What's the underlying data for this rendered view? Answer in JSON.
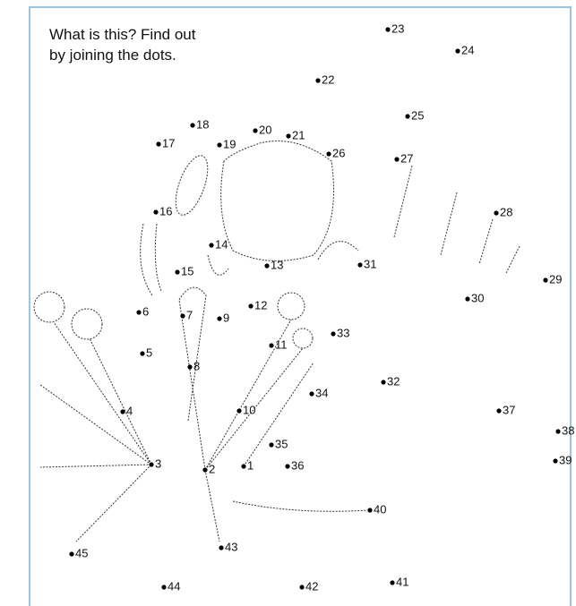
{
  "instructions": [
    "What is this? Find out",
    "by joining the dots."
  ],
  "dots": [
    "1",
    "2",
    "3",
    "4",
    "5",
    "6",
    "7",
    "8",
    "9",
    "10",
    "11",
    "12",
    "13",
    "14",
    "15",
    "16",
    "17",
    "18",
    "19",
    "20",
    "21",
    "22",
    "23",
    "24",
    "25",
    "26",
    "27",
    "28",
    "29",
    "30",
    "31",
    "32",
    "33",
    "34",
    "35",
    "36",
    "37",
    "38",
    "39",
    "40",
    "41",
    "42",
    "43",
    "44",
    "45"
  ]
}
